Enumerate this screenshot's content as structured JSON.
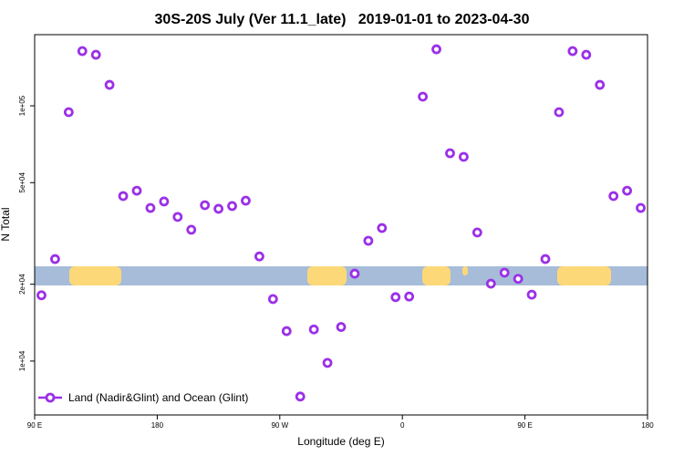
{
  "chart_data": {
    "type": "scatter",
    "title": "30S-20S July (Ver 11.1_late)   2019-01-01 to 2023-04-30",
    "xlabel": "Longitude (deg E)",
    "ylabel": "N Total",
    "xlim": [
      90,
      540
    ],
    "ylim": [
      6150,
      190000
    ],
    "log_y": true,
    "legend": "bottom-left",
    "xticks": [
      {
        "value": 90,
        "label": "90 E"
      },
      180,
      {
        "value": 270,
        "label": "90 W"
      },
      {
        "value": 360,
        "label": "0"
      },
      {
        "value": 450,
        "label": "90 E"
      },
      {
        "value": 540,
        "label": "180"
      }
    ],
    "yticks": [
      {
        "value": 10000,
        "label": "1e+04"
      },
      {
        "value": 20000,
        "label": "2e+04"
      },
      {
        "value": 50000,
        "label": "5e+04"
      },
      {
        "value": 100000,
        "label": "1e+05"
      }
    ],
    "series": [
      {
        "name": "Land (Nadir&Glint) and Ocean (Glint)",
        "color": "#9b30e8",
        "x": [
          95,
          105,
          115,
          125,
          135,
          145,
          155,
          165,
          175,
          185,
          195,
          205,
          215,
          225,
          235,
          245,
          255,
          265,
          275,
          285,
          295,
          305,
          315,
          325,
          335,
          345,
          355,
          365,
          375,
          385,
          395,
          405,
          415,
          425,
          435,
          445,
          455,
          465,
          475,
          485,
          495,
          505,
          515,
          525,
          535
        ],
        "values": [
          18100,
          25100,
          94400,
          163800,
          158500,
          120800,
          44300,
          46500,
          39800,
          42200,
          36700,
          32700,
          40800,
          39500,
          40500,
          42500,
          25700,
          17500,
          13100,
          7260,
          13300,
          9840,
          13600,
          22000,
          29600,
          33200,
          17800,
          17900,
          108600,
          166500,
          65200,
          63100,
          31900,
          20100,
          22200,
          21000,
          18200,
          25100,
          94400,
          163800,
          158500,
          120800,
          44300,
          46500,
          39800
        ]
      }
    ]
  }
}
